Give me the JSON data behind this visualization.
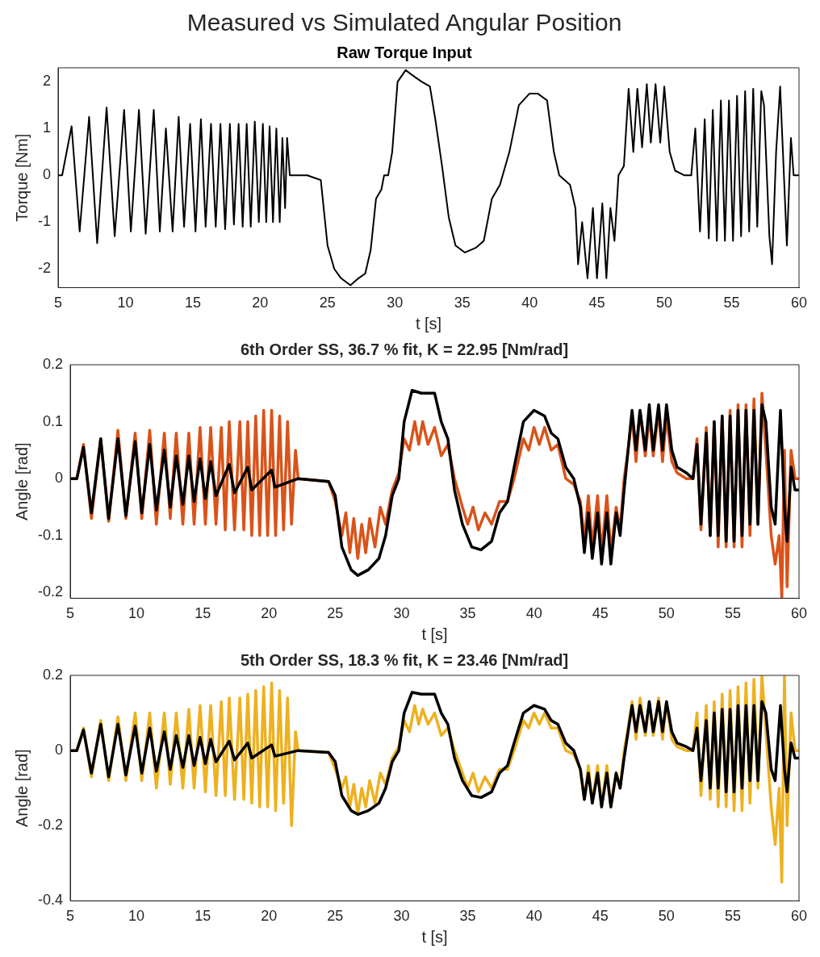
{
  "chart_data": [
    {
      "type": "line",
      "title": "Measured vs Simulated Angular Position",
      "subtitle": "Raw Torque Input",
      "xlabel": "t [s]",
      "ylabel": "Torque [Nm]",
      "xlim": [
        5,
        60
      ],
      "xticks": [
        5,
        10,
        15,
        20,
        25,
        30,
        35,
        40,
        45,
        50,
        55,
        60
      ],
      "ylim": [
        -2.4,
        2.3
      ],
      "yticks": [
        -2,
        -1,
        0,
        1,
        2
      ],
      "grid": false,
      "legend": false,
      "series": [
        {
          "color": "#000000",
          "x": [
            5,
            5.3,
            6.0,
            6.6,
            7.3,
            7.9,
            8.6,
            9.2,
            9.9,
            10.4,
            11.0,
            11.5,
            12.1,
            12.55,
            13.0,
            13.5,
            13.95,
            14.35,
            14.8,
            15.2,
            15.6,
            15.95,
            16.35,
            16.7,
            17.05,
            17.4,
            17.75,
            18.05,
            18.4,
            18.7,
            19.0,
            19.3,
            19.6,
            19.9,
            20.2,
            20.45,
            20.7,
            20.95,
            21.2,
            21.45,
            21.65,
            21.85,
            22.0,
            22.2,
            23.5,
            24.0,
            24.5,
            25.0,
            25.5,
            26.0,
            26.7,
            27.3,
            27.8,
            28.2,
            28.6,
            29.0,
            29.2,
            29.5,
            29.8,
            30.2,
            30.8,
            31.5,
            32.0,
            32.6,
            33.0,
            33.5,
            34.0,
            34.5,
            35.2,
            36.0,
            36.6,
            37.2,
            37.8,
            38.0,
            38.5,
            39.2,
            40.0,
            40.6,
            41.3,
            41.8,
            42.2,
            43.0,
            43.4,
            43.6,
            43.9,
            44.3,
            44.7,
            45.0,
            45.4,
            45.7,
            46.0,
            46.3,
            46.6,
            47.0,
            47.35,
            47.7,
            48.0,
            48.35,
            48.7,
            49.0,
            49.35,
            49.7,
            50.0,
            50.4,
            50.8,
            51.5,
            52.0,
            52.3,
            52.65,
            53.0,
            53.3,
            53.6,
            53.9,
            54.2,
            54.5,
            54.8,
            55.1,
            55.4,
            55.7,
            56.0,
            56.3,
            56.6,
            56.9,
            57.2,
            57.4,
            57.8,
            58.0,
            58.3,
            58.6,
            59.1,
            59.4,
            59.6,
            60
          ],
          "values": [
            0,
            0,
            1.05,
            -1.2,
            1.25,
            -1.45,
            1.45,
            -1.3,
            1.4,
            -1.2,
            1.4,
            -1.25,
            1.4,
            -1.2,
            1.0,
            -1.2,
            1.25,
            -1.1,
            1.1,
            -1.2,
            1.2,
            -1.1,
            1.1,
            -1.1,
            1.1,
            -1.15,
            1.1,
            -1.05,
            1.1,
            -1.1,
            1.1,
            -1.1,
            1.15,
            -1.0,
            1.1,
            -1.0,
            1.05,
            -1.0,
            1.0,
            -1.0,
            0.8,
            -0.7,
            0.8,
            0,
            0,
            -0.05,
            -0.1,
            -1.5,
            -2.0,
            -2.2,
            -2.35,
            -2.2,
            -2.1,
            -1.6,
            -0.5,
            -0.3,
            0,
            0,
            0.5,
            2.0,
            2.25,
            2.1,
            2.0,
            1.9,
            1.2,
            0.2,
            -0.9,
            -1.5,
            -1.65,
            -1.55,
            -1.4,
            -0.5,
            -0.2,
            0,
            0.5,
            1.5,
            1.75,
            1.75,
            1.6,
            0.5,
            0,
            -0.2,
            -0.7,
            -1.9,
            -1.0,
            -2.2,
            -0.7,
            -2.2,
            -0.6,
            -2.2,
            -0.7,
            -1.4,
            0,
            0.2,
            1.85,
            0.5,
            1.85,
            0.6,
            1.95,
            0.7,
            1.95,
            0.7,
            1.9,
            0.5,
            0.1,
            0,
            0,
            1.0,
            -1.2,
            1.2,
            -1.35,
            1.4,
            -1.4,
            1.6,
            -1.4,
            1.6,
            -1.4,
            1.7,
            -1.3,
            1.8,
            -1.2,
            1.85,
            -1.1,
            1.8,
            1.5,
            -1.3,
            -1.9,
            0.5,
            1.9,
            -1.5,
            0.8,
            0,
            0
          ]
        }
      ]
    },
    {
      "type": "line",
      "title": "6th Order SS, 36.7 % fit, K = 22.95 [Nm/rad]",
      "xlabel": "t [s]",
      "ylabel": "Angle [rad]",
      "xlim": [
        5,
        60
      ],
      "xticks": [
        5,
        10,
        15,
        20,
        25,
        30,
        35,
        40,
        45,
        50,
        55,
        60
      ],
      "ylim": [
        -0.21,
        0.2
      ],
      "yticks": [
        -0.2,
        -0.1,
        0,
        0.1,
        0.2
      ],
      "grid": false,
      "legend": false,
      "series": [
        {
          "color": "#000000",
          "x": [
            5,
            5.5,
            6.0,
            6.6,
            7.3,
            7.9,
            8.6,
            9.2,
            9.9,
            10.4,
            11.0,
            11.5,
            12.1,
            12.55,
            13.0,
            13.5,
            13.95,
            14.35,
            14.8,
            15.2,
            15.6,
            16.0,
            17.0,
            17.4,
            18.4,
            18.7,
            20.2,
            20.45,
            22.2,
            24.5,
            25.0,
            25.5,
            26.2,
            26.7,
            27.5,
            28.3,
            28.8,
            29.3,
            29.8,
            30.2,
            30.8,
            31.5,
            32.5,
            33.0,
            33.5,
            34.0,
            34.6,
            35.3,
            36.0,
            36.8,
            37.4,
            38.0,
            38.5,
            39.2,
            40.0,
            40.8,
            41.3,
            41.8,
            42.4,
            43.0,
            43.5,
            43.8,
            44.1,
            44.4,
            44.8,
            45.1,
            45.5,
            45.8,
            46.2,
            46.5,
            46.8,
            47.1,
            47.4,
            47.7,
            48.0,
            48.4,
            48.7,
            49.0,
            49.4,
            49.7,
            50.0,
            50.4,
            50.8,
            51.5,
            52.0,
            52.3,
            52.6,
            53.0,
            53.3,
            53.6,
            53.9,
            54.2,
            54.5,
            54.8,
            55.1,
            55.4,
            55.7,
            56.0,
            56.3,
            56.6,
            56.9,
            57.2,
            57.5,
            57.9,
            58.2,
            58.6,
            58.9,
            59.1,
            59.4,
            59.7,
            60
          ],
          "values": [
            0,
            0,
            0.055,
            -0.06,
            0.07,
            -0.07,
            0.07,
            -0.065,
            0.065,
            -0.06,
            0.06,
            -0.055,
            0.05,
            -0.05,
            0.04,
            -0.045,
            0.04,
            -0.04,
            0.035,
            -0.035,
            0.03,
            -0.03,
            0.025,
            -0.025,
            0.02,
            -0.02,
            0.015,
            -0.015,
            0,
            -0.005,
            -0.03,
            -0.12,
            -0.16,
            -0.17,
            -0.16,
            -0.14,
            -0.1,
            -0.03,
            0,
            0.1,
            0.155,
            0.15,
            0.15,
            0.1,
            0.07,
            -0.02,
            -0.08,
            -0.12,
            -0.125,
            -0.11,
            -0.06,
            -0.04,
            0.02,
            0.1,
            0.12,
            0.11,
            0.08,
            0.07,
            0.02,
            0,
            -0.05,
            -0.13,
            -0.06,
            -0.14,
            -0.06,
            -0.15,
            -0.06,
            -0.15,
            -0.06,
            -0.1,
            -0.02,
            0.05,
            0.12,
            0.05,
            0.12,
            0.05,
            0.13,
            0.05,
            0.13,
            0.05,
            0.13,
            0.05,
            0.02,
            0.01,
            0,
            0.06,
            -0.08,
            0.08,
            -0.1,
            0.1,
            -0.1,
            0.11,
            -0.11,
            0.11,
            -0.11,
            0.12,
            -0.1,
            0.12,
            -0.08,
            0.12,
            -0.08,
            0.13,
            0.1,
            -0.05,
            -0.08,
            0.12,
            -0.05,
            -0.11,
            0.02,
            -0.02,
            -0.02
          ]
        },
        {
          "color": "#d95319",
          "x": [
            5,
            5.5,
            6.0,
            6.6,
            7.3,
            7.9,
            8.6,
            9.2,
            9.9,
            10.4,
            11.0,
            11.5,
            12.1,
            12.55,
            13.0,
            13.5,
            13.95,
            14.35,
            14.8,
            15.2,
            15.6,
            16.0,
            16.4,
            16.7,
            17.0,
            17.4,
            17.8,
            18.1,
            18.4,
            18.7,
            19.0,
            19.3,
            19.6,
            19.9,
            20.2,
            20.5,
            20.8,
            21.1,
            21.4,
            21.7,
            22.0,
            22.2,
            24.5,
            25.0,
            25.5,
            25.8,
            26.1,
            26.4,
            26.7,
            27.0,
            27.3,
            27.6,
            28.0,
            28.4,
            28.8,
            29.3,
            29.8,
            30.2,
            30.6,
            31.0,
            31.3,
            31.6,
            32.0,
            32.5,
            33.0,
            33.5,
            34.0,
            34.6,
            35.0,
            35.4,
            35.8,
            36.3,
            36.8,
            37.4,
            38.0,
            38.5,
            39.2,
            39.6,
            40.0,
            40.4,
            40.8,
            41.3,
            41.8,
            42.4,
            43.0,
            43.5,
            43.8,
            44.1,
            44.4,
            44.8,
            45.1,
            45.5,
            45.8,
            46.2,
            46.5,
            46.8,
            47.1,
            47.4,
            47.7,
            48.0,
            48.4,
            48.7,
            49.0,
            49.4,
            49.7,
            50.0,
            50.4,
            50.8,
            51.5,
            52.0,
            52.3,
            52.6,
            53.0,
            53.3,
            53.6,
            53.9,
            54.2,
            54.5,
            54.8,
            55.1,
            55.4,
            55.7,
            56.0,
            56.3,
            56.6,
            56.9,
            57.2,
            57.5,
            57.9,
            58.2,
            58.5,
            58.7,
            58.9,
            59.1,
            59.4,
            59.7,
            60
          ],
          "values": [
            0,
            0,
            0.06,
            -0.07,
            0.07,
            -0.075,
            0.085,
            -0.07,
            0.08,
            -0.07,
            0.085,
            -0.08,
            0.08,
            -0.07,
            0.08,
            -0.08,
            0.08,
            -0.08,
            0.09,
            -0.08,
            0.09,
            -0.08,
            0.09,
            -0.09,
            0.1,
            -0.09,
            0.1,
            -0.09,
            0.1,
            -0.1,
            0.11,
            -0.1,
            0.12,
            -0.1,
            0.12,
            -0.1,
            0.11,
            -0.09,
            0.1,
            -0.08,
            0.05,
            0,
            -0.005,
            -0.04,
            -0.1,
            -0.06,
            -0.13,
            -0.07,
            -0.14,
            -0.08,
            -0.13,
            -0.07,
            -0.12,
            -0.05,
            -0.08,
            -0.02,
            0.01,
            0.07,
            0.05,
            0.1,
            0.06,
            0.1,
            0.06,
            0.09,
            0.04,
            0.06,
            0,
            -0.05,
            -0.08,
            -0.05,
            -0.09,
            -0.06,
            -0.08,
            -0.04,
            -0.04,
            0,
            0.07,
            0.05,
            0.09,
            0.06,
            0.09,
            0.05,
            0.06,
            0,
            -0.01,
            -0.04,
            -0.11,
            -0.03,
            -0.12,
            -0.03,
            -0.13,
            -0.03,
            -0.13,
            -0.05,
            -0.09,
            0,
            0.05,
            0.11,
            0.03,
            0.12,
            0.04,
            0.11,
            0.04,
            0.12,
            0.03,
            0.11,
            0.03,
            0.01,
            0,
            0,
            0.07,
            -0.09,
            0.09,
            -0.1,
            0.1,
            -0.12,
            0.11,
            -0.12,
            0.12,
            -0.12,
            0.13,
            -0.12,
            0.13,
            -0.1,
            0.14,
            -0.08,
            0.15,
            0.05,
            -0.1,
            -0.15,
            -0.1,
            -0.21,
            0.05,
            -0.19,
            0.05,
            0,
            0
          ]
        }
      ]
    },
    {
      "type": "line",
      "title": "5th Order SS, 18.3 % fit, K = 23.46 [Nm/rad]",
      "xlabel": "t [s]",
      "ylabel": "Angle [rad]",
      "xlim": [
        5,
        60
      ],
      "xticks": [
        5,
        10,
        15,
        20,
        25,
        30,
        35,
        40,
        45,
        50,
        55,
        60
      ],
      "ylim": [
        -0.4,
        0.2
      ],
      "yticks": [
        -0.4,
        -0.2,
        0,
        0.2
      ],
      "grid": false,
      "legend": false,
      "series": [
        {
          "color": "#000000",
          "x": [
            5,
            5.5,
            6.0,
            6.6,
            7.3,
            7.9,
            8.6,
            9.2,
            9.9,
            10.4,
            11.0,
            11.5,
            12.1,
            12.55,
            13.0,
            13.5,
            13.95,
            14.35,
            14.8,
            15.2,
            15.6,
            16.0,
            17.0,
            17.4,
            18.4,
            18.7,
            20.2,
            20.45,
            22.2,
            24.5,
            25.0,
            25.5,
            26.2,
            26.7,
            27.5,
            28.3,
            28.8,
            29.3,
            29.8,
            30.2,
            30.8,
            31.5,
            32.5,
            33.0,
            33.5,
            34.0,
            34.6,
            35.3,
            36.0,
            36.8,
            37.4,
            38.0,
            38.5,
            39.2,
            40.0,
            40.8,
            41.3,
            41.8,
            42.4,
            43.0,
            43.5,
            43.8,
            44.1,
            44.4,
            44.8,
            45.1,
            45.5,
            45.8,
            46.2,
            46.5,
            46.8,
            47.1,
            47.4,
            47.7,
            48.0,
            48.4,
            48.7,
            49.0,
            49.4,
            49.7,
            50.0,
            50.4,
            50.8,
            51.5,
            52.0,
            52.3,
            52.6,
            53.0,
            53.3,
            53.6,
            53.9,
            54.2,
            54.5,
            54.8,
            55.1,
            55.4,
            55.7,
            56.0,
            56.3,
            56.6,
            56.9,
            57.2,
            57.5,
            57.9,
            58.2,
            58.6,
            58.9,
            59.1,
            59.4,
            59.7,
            60
          ],
          "values": [
            0,
            0,
            0.055,
            -0.06,
            0.07,
            -0.07,
            0.07,
            -0.065,
            0.065,
            -0.06,
            0.06,
            -0.055,
            0.05,
            -0.05,
            0.04,
            -0.045,
            0.04,
            -0.04,
            0.035,
            -0.035,
            0.03,
            -0.03,
            0.025,
            -0.025,
            0.02,
            -0.02,
            0.015,
            -0.015,
            0,
            -0.005,
            -0.03,
            -0.12,
            -0.16,
            -0.17,
            -0.16,
            -0.14,
            -0.1,
            -0.03,
            0,
            0.1,
            0.155,
            0.15,
            0.15,
            0.1,
            0.07,
            -0.02,
            -0.08,
            -0.12,
            -0.125,
            -0.11,
            -0.06,
            -0.04,
            0.02,
            0.1,
            0.12,
            0.11,
            0.08,
            0.07,
            0.02,
            0,
            -0.05,
            -0.13,
            -0.06,
            -0.14,
            -0.06,
            -0.15,
            -0.06,
            -0.15,
            -0.06,
            -0.1,
            -0.02,
            0.05,
            0.12,
            0.05,
            0.12,
            0.05,
            0.13,
            0.05,
            0.13,
            0.05,
            0.13,
            0.05,
            0.02,
            0.01,
            0,
            0.06,
            -0.08,
            0.08,
            -0.1,
            0.1,
            -0.1,
            0.11,
            -0.11,
            0.11,
            -0.11,
            0.12,
            -0.1,
            0.12,
            -0.08,
            0.12,
            -0.08,
            0.13,
            0.1,
            -0.05,
            -0.08,
            0.12,
            -0.05,
            -0.11,
            0.02,
            -0.02,
            -0.02
          ]
        },
        {
          "color": "#edb120",
          "x": [
            5,
            5.5,
            6.0,
            6.6,
            7.3,
            7.9,
            8.6,
            9.2,
            9.9,
            10.4,
            11.0,
            11.5,
            12.1,
            12.55,
            13.0,
            13.5,
            13.95,
            14.35,
            14.8,
            15.2,
            15.6,
            16.0,
            16.4,
            16.7,
            17.0,
            17.4,
            17.8,
            18.1,
            18.4,
            18.7,
            19.0,
            19.3,
            19.6,
            19.9,
            20.2,
            20.5,
            20.8,
            21.1,
            21.4,
            21.7,
            22.0,
            22.2,
            24.5,
            25.0,
            25.5,
            25.8,
            26.1,
            26.4,
            26.7,
            27.0,
            27.3,
            27.6,
            28.0,
            28.4,
            28.8,
            29.3,
            29.8,
            30.2,
            30.6,
            31.0,
            31.3,
            31.6,
            32.0,
            32.5,
            33.0,
            33.5,
            34.0,
            34.6,
            35.0,
            35.4,
            35.8,
            36.3,
            36.8,
            37.4,
            38.0,
            38.5,
            39.2,
            39.6,
            40.0,
            40.4,
            40.8,
            41.3,
            41.8,
            42.4,
            43.0,
            43.5,
            43.8,
            44.1,
            44.4,
            44.8,
            45.1,
            45.5,
            45.8,
            46.2,
            46.5,
            46.8,
            47.1,
            47.4,
            47.7,
            48.0,
            48.4,
            48.7,
            49.0,
            49.4,
            49.7,
            50.0,
            50.4,
            50.8,
            51.5,
            52.0,
            52.3,
            52.6,
            53.0,
            53.3,
            53.6,
            53.9,
            54.2,
            54.5,
            54.8,
            55.1,
            55.4,
            55.7,
            56.0,
            56.3,
            56.6,
            56.9,
            57.2,
            57.5,
            57.9,
            58.2,
            58.5,
            58.7,
            58.9,
            59.1,
            59.4,
            59.7,
            60
          ],
          "values": [
            0,
            0,
            0.06,
            -0.07,
            0.08,
            -0.08,
            0.09,
            -0.08,
            0.1,
            -0.08,
            0.1,
            -0.1,
            0.1,
            -0.09,
            0.1,
            -0.1,
            0.11,
            -0.1,
            0.12,
            -0.11,
            0.12,
            -0.12,
            0.13,
            -0.12,
            0.14,
            -0.13,
            0.14,
            -0.13,
            0.15,
            -0.14,
            0.16,
            -0.15,
            0.17,
            -0.15,
            0.18,
            -0.16,
            0.16,
            -0.14,
            0.14,
            -0.2,
            0.05,
            0,
            -0.005,
            -0.05,
            -0.1,
            -0.07,
            -0.15,
            -0.09,
            -0.17,
            -0.1,
            -0.15,
            -0.08,
            -0.14,
            -0.06,
            -0.09,
            -0.02,
            0.01,
            0.08,
            0.05,
            0.12,
            0.07,
            0.11,
            0.07,
            0.1,
            0.04,
            0.06,
            0,
            -0.06,
            -0.1,
            -0.06,
            -0.11,
            -0.07,
            -0.1,
            -0.05,
            -0.05,
            0,
            0.08,
            0.06,
            0.1,
            0.07,
            0.1,
            0.06,
            0.06,
            0,
            -0.01,
            -0.05,
            -0.13,
            -0.04,
            -0.14,
            -0.04,
            -0.15,
            -0.04,
            -0.15,
            -0.06,
            -0.1,
            0,
            0.06,
            0.13,
            0.03,
            0.14,
            0.04,
            0.13,
            0.04,
            0.14,
            0.03,
            0.13,
            0.03,
            0.01,
            0,
            0,
            0.1,
            -0.12,
            0.12,
            -0.13,
            0.13,
            -0.15,
            0.15,
            -0.15,
            0.16,
            -0.16,
            0.17,
            -0.16,
            0.18,
            -0.14,
            0.19,
            -0.1,
            0.2,
            0.05,
            -0.15,
            -0.25,
            -0.1,
            -0.35,
            0.2,
            -0.2,
            0.1,
            0,
            0
          ]
        }
      ]
    }
  ]
}
